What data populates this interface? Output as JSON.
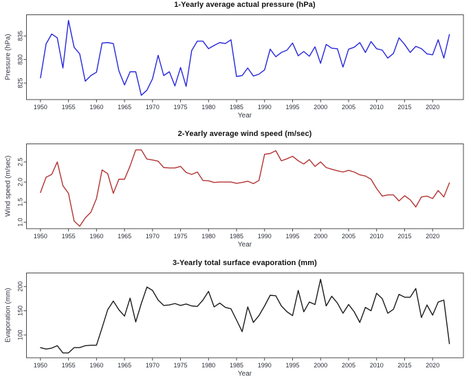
{
  "page": {
    "background": "#ffffff"
  },
  "chart_data": {
    "type": "line",
    "xlabel": "Year",
    "x": [
      1950,
      1951,
      1952,
      1953,
      1954,
      1955,
      1956,
      1957,
      1958,
      1959,
      1960,
      1961,
      1962,
      1963,
      1964,
      1965,
      1966,
      1967,
      1968,
      1969,
      1970,
      1971,
      1972,
      1973,
      1974,
      1975,
      1976,
      1977,
      1978,
      1979,
      1980,
      1981,
      1982,
      1983,
      1984,
      1985,
      1986,
      1987,
      1988,
      1989,
      1990,
      1991,
      1992,
      1993,
      1994,
      1995,
      1996,
      1997,
      1998,
      1999,
      2000,
      2001,
      2002,
      2003,
      2004,
      2005,
      2006,
      2007,
      2008,
      2009,
      2010,
      2011,
      2012,
      2013,
      2014,
      2015,
      2016,
      2017,
      2018,
      2019,
      2020,
      2021,
      2022,
      2023
    ],
    "xticks": [
      1950,
      1955,
      1960,
      1965,
      1970,
      1975,
      1980,
      1985,
      1990,
      1995,
      2000,
      2005,
      2010,
      2015,
      2020
    ],
    "xlim": [
      1947.5,
      2025.5
    ],
    "grid": false,
    "legend": "none",
    "series": [
      {
        "key": "pressure",
        "name": "1-Yearly average actual pressure (hPa)",
        "ylabel": "Pressure (hPa)",
        "color": "#2525DC",
        "yticks": [
          825,
          830,
          835
        ],
        "ytick_labels": [
          "825",
          "830",
          "835"
        ],
        "ylim": [
          821.5,
          839.5
        ],
        "values": [
          826.1,
          833.3,
          835.4,
          834.6,
          828.2,
          838.3,
          832.6,
          831.2,
          825.4,
          826.6,
          827.3,
          833.5,
          833.6,
          833.4,
          827.6,
          824.6,
          827.4,
          827.4,
          822.4,
          823.5,
          825.9,
          830.9,
          826.6,
          827.4,
          824.4,
          828.3,
          824.3,
          831.9,
          833.9,
          833.9,
          832.3,
          833.0,
          833.6,
          833.4,
          834.2,
          826.4,
          826.6,
          828.2,
          826.5,
          826.9,
          827.8,
          832.2,
          830.6,
          831.5,
          832.0,
          833.5,
          830.8,
          831.7,
          830.7,
          832.7,
          829.2,
          833.2,
          832.4,
          832.3,
          828.4,
          832.2,
          832.6,
          833.6,
          831.5,
          833.8,
          832.3,
          832.0,
          830.3,
          831.3,
          834.6,
          833.2,
          831.5,
          832.8,
          832.3,
          831.2,
          831.0,
          834.2,
          830.3,
          835.3
        ]
      },
      {
        "key": "wind-speed",
        "name": "2-Yearly average wind speed (m/sec)",
        "ylabel": "Wind speed (m/sec)",
        "color": "#B23232",
        "yticks": [
          1.0,
          1.5,
          2.0,
          2.5
        ],
        "ytick_labels": [
          "1.0",
          "1.5",
          "2.0",
          "2.5"
        ],
        "ylim": [
          0.84,
          2.95
        ],
        "values": [
          1.74,
          2.12,
          2.19,
          2.5,
          1.91,
          1.72,
          1.03,
          0.9,
          1.11,
          1.25,
          1.59,
          2.3,
          2.21,
          1.72,
          2.07,
          2.07,
          2.4,
          2.8,
          2.8,
          2.57,
          2.55,
          2.52,
          2.36,
          2.35,
          2.35,
          2.39,
          2.24,
          2.19,
          2.25,
          2.04,
          2.03,
          1.99,
          2.0,
          2.0,
          2.0,
          1.97,
          1.99,
          2.02,
          1.96,
          2.04,
          2.69,
          2.71,
          2.78,
          2.53,
          2.58,
          2.64,
          2.53,
          2.45,
          2.56,
          2.39,
          2.5,
          2.36,
          2.32,
          2.28,
          2.25,
          2.29,
          2.25,
          2.18,
          2.15,
          2.07,
          1.84,
          1.65,
          1.68,
          1.68,
          1.53,
          1.66,
          1.56,
          1.38,
          1.63,
          1.65,
          1.59,
          1.79,
          1.63,
          1.98
        ]
      },
      {
        "key": "evaporation",
        "name": "3-Yearly total surface evaporation (mm)",
        "ylabel": "Evaporation (mm)",
        "color": "#1a1a1a",
        "yticks": [
          100,
          150,
          200
        ],
        "ytick_labels": [
          "100",
          "150",
          "200"
        ],
        "ylim": [
          53,
          228
        ],
        "values": [
          74,
          71,
          73,
          78,
          63,
          63,
          74,
          74,
          78,
          79,
          79,
          115,
          152,
          170,
          152,
          139,
          176,
          127,
          165,
          199,
          192,
          172,
          161,
          162,
          165,
          161,
          164,
          160,
          159,
          172,
          190,
          158,
          166,
          157,
          154,
          131,
          107,
          158,
          126,
          140,
          160,
          182,
          181,
          160,
          148,
          140,
          192,
          148,
          168,
          163,
          215,
          160,
          180,
          166,
          145,
          163,
          148,
          126,
          157,
          150,
          186,
          175,
          145,
          153,
          184,
          178,
          178,
          196,
          136,
          162,
          141,
          168,
          172,
          82
        ]
      }
    ]
  }
}
